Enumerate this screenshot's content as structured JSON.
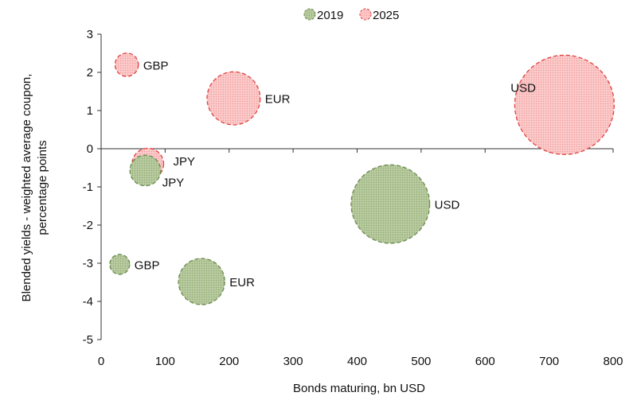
{
  "chart_data": {
    "type": "scatter",
    "subtype": "bubble",
    "xlabel": "Bonds maturing, bn USD",
    "ylabel": [
      "Blended yields - weighted average coupon,",
      "percentage points"
    ],
    "xlim": [
      0,
      800
    ],
    "ylim": [
      -5,
      3
    ],
    "xticks": [
      0,
      100,
      200,
      300,
      400,
      500,
      600,
      700,
      800
    ],
    "yticks": [
      -5,
      -4,
      -3,
      -2,
      -1,
      0,
      1,
      2,
      3
    ],
    "grid": false,
    "legend_position": "top-center",
    "bubble_size_note": "bubble area proportional to bonds maturing",
    "series": [
      {
        "name": "2019",
        "color": "#a9bf8c",
        "stroke": "#6b8a4e",
        "points": [
          {
            "label": "USD",
            "x": 452,
            "y": -1.45
          },
          {
            "label": "EUR",
            "x": 157,
            "y": -3.48
          },
          {
            "label": "GBP",
            "x": 29,
            "y": -3.03
          },
          {
            "label": "JPY",
            "x": 69,
            "y": -0.57
          }
        ]
      },
      {
        "name": "2025",
        "color": "#f7b8b8",
        "stroke": "#e0413f",
        "points": [
          {
            "label": "USD",
            "x": 724,
            "y": 1.15
          },
          {
            "label": "EUR",
            "x": 207,
            "y": 1.32
          },
          {
            "label": "GBP",
            "x": 40,
            "y": 2.2
          },
          {
            "label": "JPY",
            "x": 73,
            "y": -0.4
          }
        ]
      }
    ]
  }
}
